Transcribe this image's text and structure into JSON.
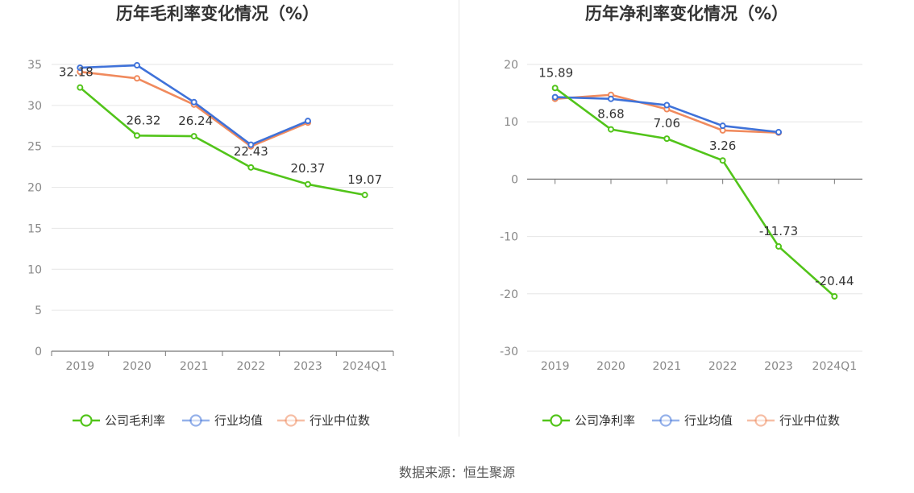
{
  "source": "数据来源：恒生聚源",
  "chart_data": [
    {
      "type": "line",
      "title": "历年毛利率变化情况（%）",
      "categories": [
        "2019",
        "2020",
        "2021",
        "2022",
        "2023",
        "2024Q1"
      ],
      "ylim": [
        0,
        35
      ],
      "yticks": [
        0,
        5,
        10,
        15,
        20,
        25,
        30,
        35
      ],
      "grid": true,
      "legend_position": "bottom-center",
      "series": [
        {
          "name": "公司毛利率",
          "color": "#52c41a",
          "values": [
            32.18,
            26.32,
            26.24,
            22.43,
            20.37,
            19.07
          ],
          "labels": true
        },
        {
          "name": "行业均值",
          "color": "#3f72d9",
          "values": [
            34.6,
            34.9,
            30.4,
            25.2,
            28.1,
            null
          ],
          "labels": false
        },
        {
          "name": "行业中位数",
          "color": "#f08a5d",
          "values": [
            34.1,
            33.3,
            30.1,
            25.0,
            27.9,
            null
          ],
          "labels": false
        }
      ]
    },
    {
      "type": "line",
      "title": "历年净利率变化情况（%）",
      "categories": [
        "2019",
        "2020",
        "2021",
        "2022",
        "2023",
        "2024Q1"
      ],
      "ylim": [
        -30,
        20
      ],
      "yticks": [
        -30,
        -20,
        -10,
        0,
        10,
        20
      ],
      "grid": true,
      "legend_position": "bottom-center",
      "series": [
        {
          "name": "公司净利率",
          "color": "#52c41a",
          "values": [
            15.89,
            8.68,
            7.06,
            3.26,
            -11.73,
            -20.44
          ],
          "labels": true
        },
        {
          "name": "行业均值",
          "color": "#3f72d9",
          "values": [
            14.3,
            14.0,
            12.9,
            9.3,
            8.2,
            null
          ],
          "labels": false
        },
        {
          "name": "行业中位数",
          "color": "#f08a5d",
          "values": [
            14.0,
            14.7,
            12.2,
            8.5,
            8.1,
            null
          ],
          "labels": false
        }
      ]
    }
  ]
}
